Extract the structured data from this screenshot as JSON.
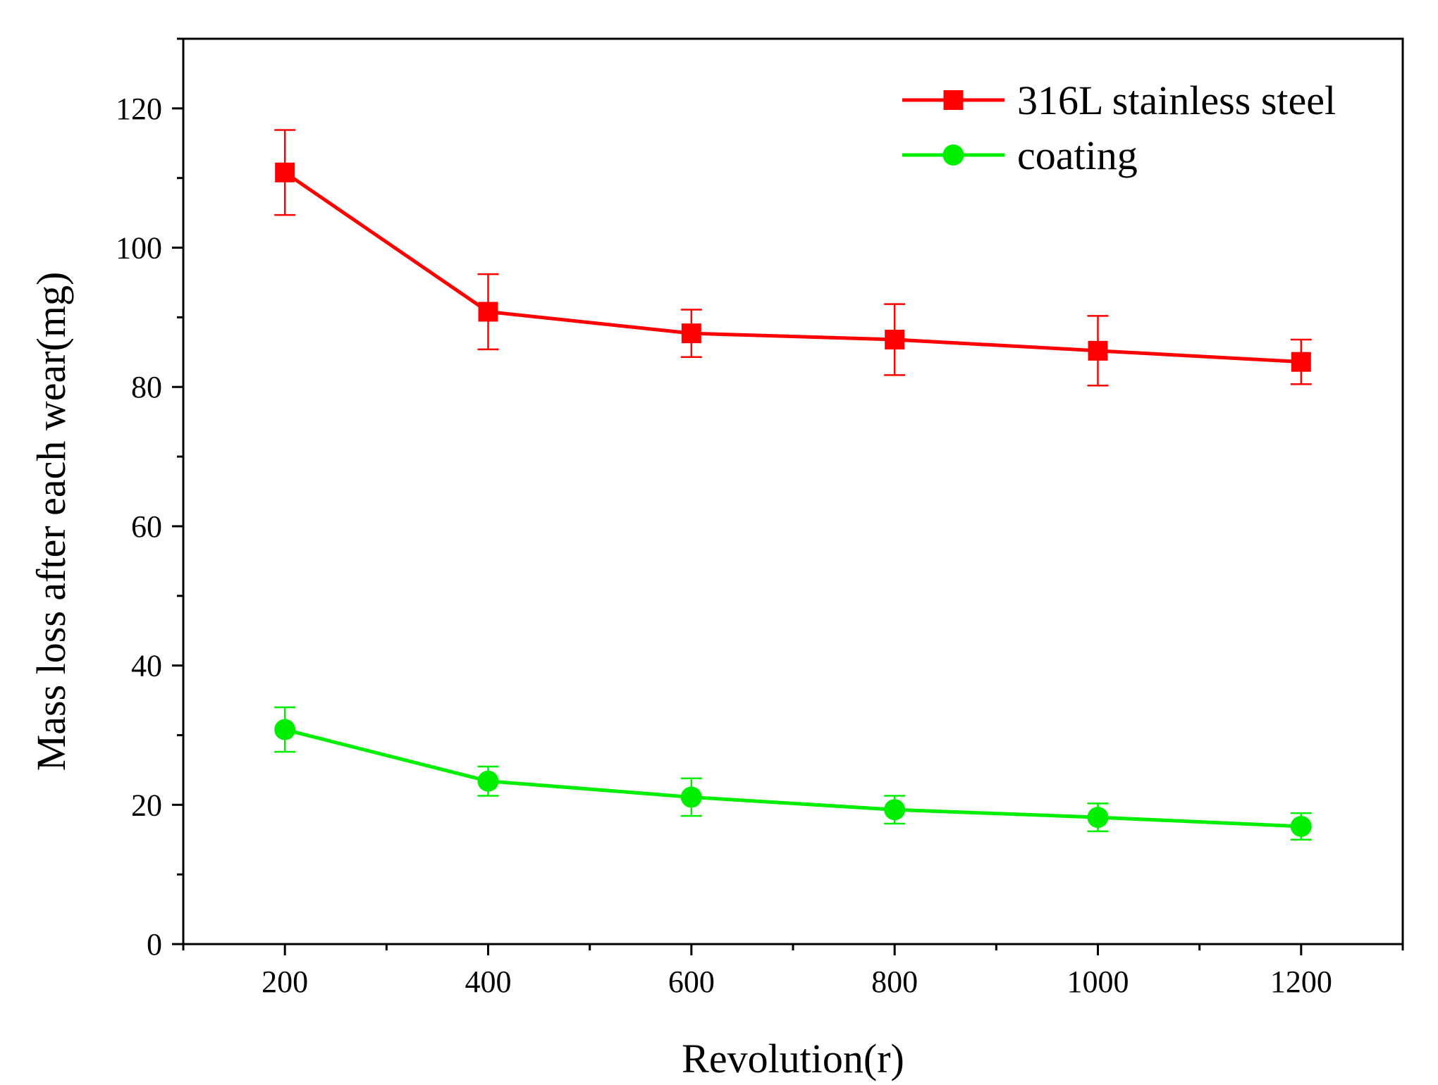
{
  "chart_data": {
    "type": "line",
    "title": "",
    "xlabel": "Revolution(r)",
    "ylabel": "Mass loss after each wear(mg)",
    "xlim": [
      100,
      1300
    ],
    "ylim": [
      0,
      130
    ],
    "xticks": [
      200,
      400,
      600,
      800,
      1000,
      1200
    ],
    "yticks": [
      0,
      20,
      40,
      60,
      80,
      100,
      120
    ],
    "x_minor_step": 100,
    "y_minor_step": 10,
    "legend_position": "top-right",
    "series": [
      {
        "name": "316L stainless steel",
        "color": "#ff0000",
        "marker": "square",
        "x": [
          200,
          400,
          600,
          800,
          1000,
          1200
        ],
        "y": [
          110.8,
          90.8,
          87.7,
          86.8,
          85.2,
          83.6
        ],
        "error": [
          6.1,
          5.4,
          3.4,
          5.1,
          5.0,
          3.2
        ]
      },
      {
        "name": "coating",
        "color": "#00ee00",
        "marker": "circle",
        "x": [
          200,
          400,
          600,
          800,
          1000,
          1200
        ],
        "y": [
          30.8,
          23.4,
          21.1,
          19.3,
          18.2,
          16.9
        ],
        "error": [
          3.2,
          2.1,
          2.7,
          2.0,
          2.0,
          1.9
        ]
      }
    ]
  }
}
